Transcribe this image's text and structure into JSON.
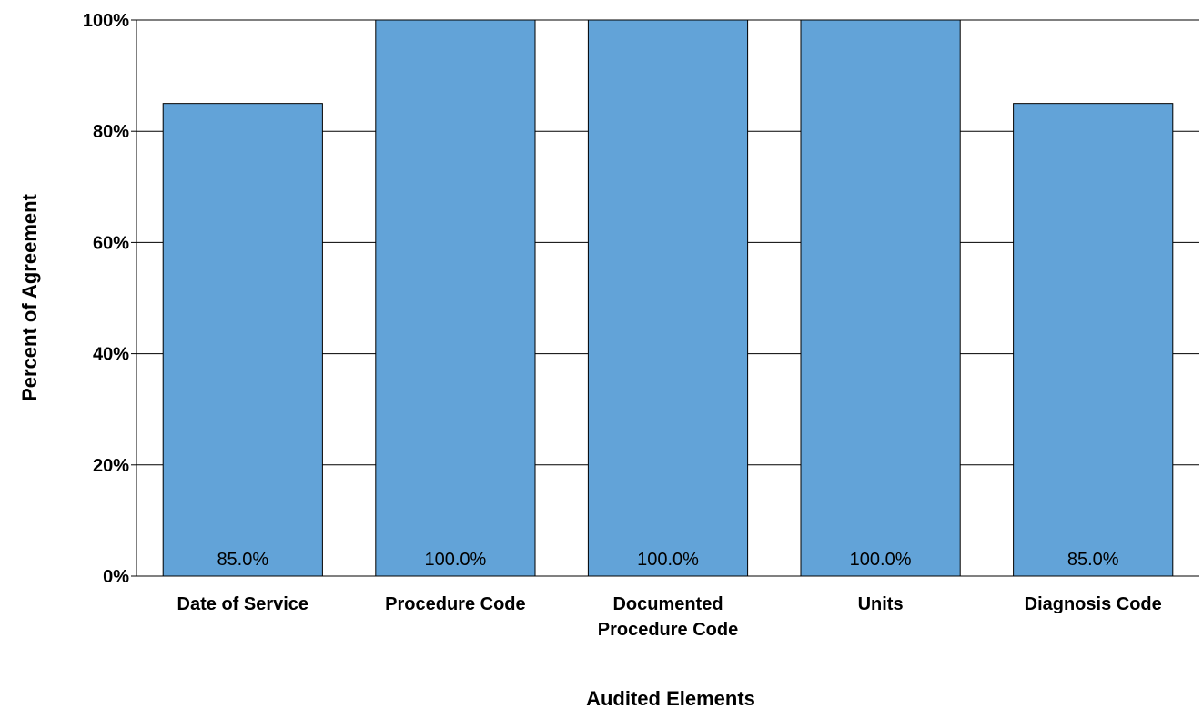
{
  "chart_data": {
    "type": "bar",
    "categories": [
      [
        "Date of Service"
      ],
      [
        "Procedure Code"
      ],
      [
        "Documented",
        "Procedure Code"
      ],
      [
        "Units"
      ],
      [
        "Diagnosis Code"
      ]
    ],
    "values": [
      85.0,
      100.0,
      100.0,
      100.0,
      85.0
    ],
    "data_labels": [
      "85.0%",
      "100.0%",
      "100.0%",
      "100.0%",
      "85.0%"
    ],
    "xlabel": "Audited Elements",
    "ylabel": "Percent of Agreement",
    "ylim": [
      0,
      100
    ],
    "yticks": [
      0,
      20,
      40,
      60,
      80,
      100
    ],
    "ytick_labels": [
      "0%",
      "20%",
      "40%",
      "60%",
      "80%",
      "100%"
    ],
    "grid": true,
    "bar_color": "#62a3d8",
    "bar_edge_color": "#000000",
    "grid_color": "#000000"
  }
}
